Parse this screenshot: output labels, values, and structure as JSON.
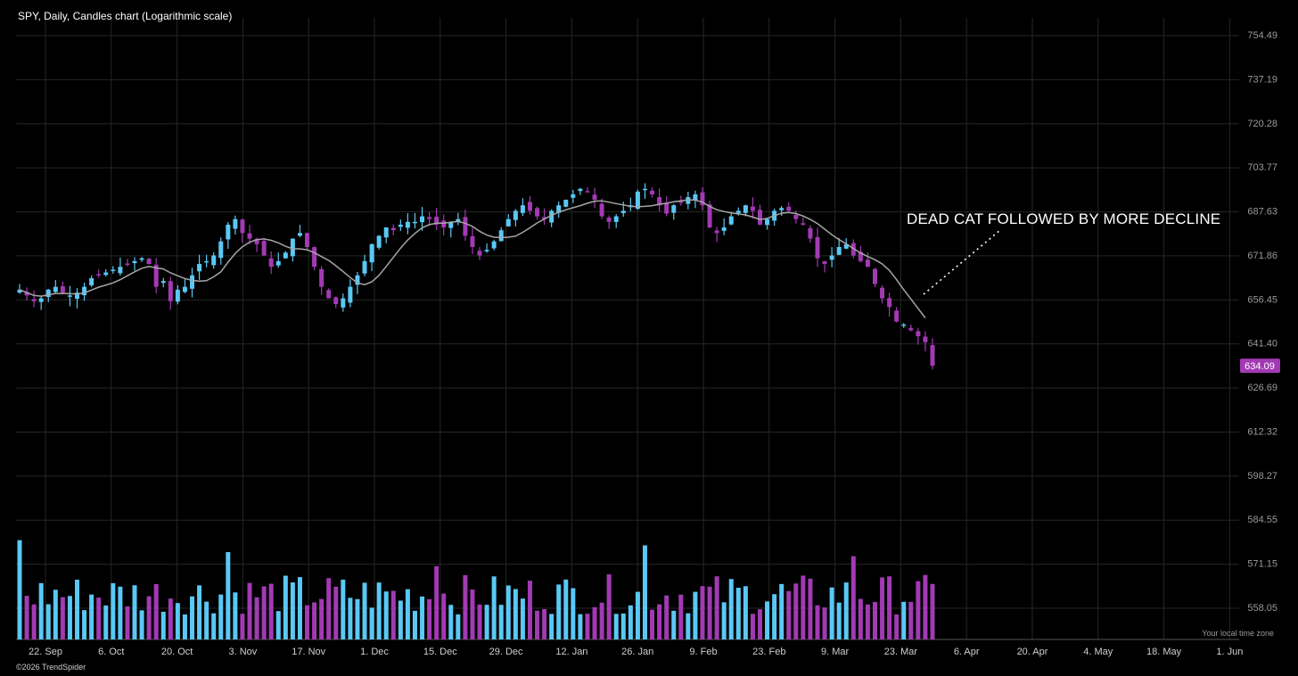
{
  "chart_data": {
    "type": "candlestick",
    "title": "SPY, Daily, Candles chart (Logarithmic scale)",
    "y_scale": "log",
    "ylim": [
      553,
      760
    ],
    "y_ticks": [
      754.49,
      737.19,
      720.28,
      703.77,
      687.63,
      671.86,
      656.45,
      641.4,
      626.69,
      612.32,
      598.27,
      584.55,
      571.15,
      558.05
    ],
    "x_ticks": [
      "22. Sep",
      "6. Oct",
      "20. Oct",
      "3. Nov",
      "17. Nov",
      "1. Dec",
      "15. Dec",
      "29. Dec",
      "12. Jan",
      "26. Jan",
      "9. Feb",
      "23. Feb",
      "9. Mar",
      "23. Mar",
      "6. Apr",
      "20. Apr",
      "4. May",
      "18. May",
      "1. Jun"
    ],
    "last_price": "634.09",
    "annotation": "DEAD CAT FOLLOWED BY MORE DECLINE",
    "colors": {
      "up": "#5ac8f5",
      "down": "#a23ab3",
      "ma_line": "#a6a6a6",
      "grid": "#262626",
      "last_price_badge": "#a23ab3"
    },
    "series": [
      {
        "name": "SPY",
        "closes": [
          660,
          658,
          656,
          657,
          660,
          661,
          659,
          658,
          659,
          661,
          664,
          665,
          666,
          667,
          668,
          669,
          670,
          671,
          669,
          661,
          663,
          656,
          660,
          661,
          665,
          669,
          670,
          672,
          677,
          683,
          685,
          680,
          678,
          676,
          672,
          668,
          670,
          673,
          678,
          680,
          675,
          668,
          661,
          657,
          655,
          657,
          661,
          665,
          670,
          676,
          679,
          682,
          681,
          683,
          684,
          684,
          686,
          685,
          683,
          682,
          684,
          685,
          679,
          675,
          672,
          674,
          677,
          681,
          685,
          688,
          690,
          688,
          686,
          685,
          688,
          690,
          692,
          694,
          696,
          695,
          692,
          686,
          684,
          686,
          688,
          690,
          695,
          696,
          694,
          690,
          687,
          690,
          691,
          693,
          694,
          690,
          682,
          680,
          682,
          686,
          688,
          690,
          688,
          683,
          685,
          688,
          689,
          688,
          685,
          683,
          678,
          671,
          669,
          672,
          675,
          676,
          672,
          670,
          668,
          662,
          657,
          654,
          649,
          648,
          646,
          644,
          642,
          634.09
        ]
      }
    ],
    "ma_label": "",
    "volume_axis": "unlabeled"
  },
  "labels": {
    "timezone_note": "Your local time zone",
    "copyright": "©2026 TrendSpider"
  }
}
